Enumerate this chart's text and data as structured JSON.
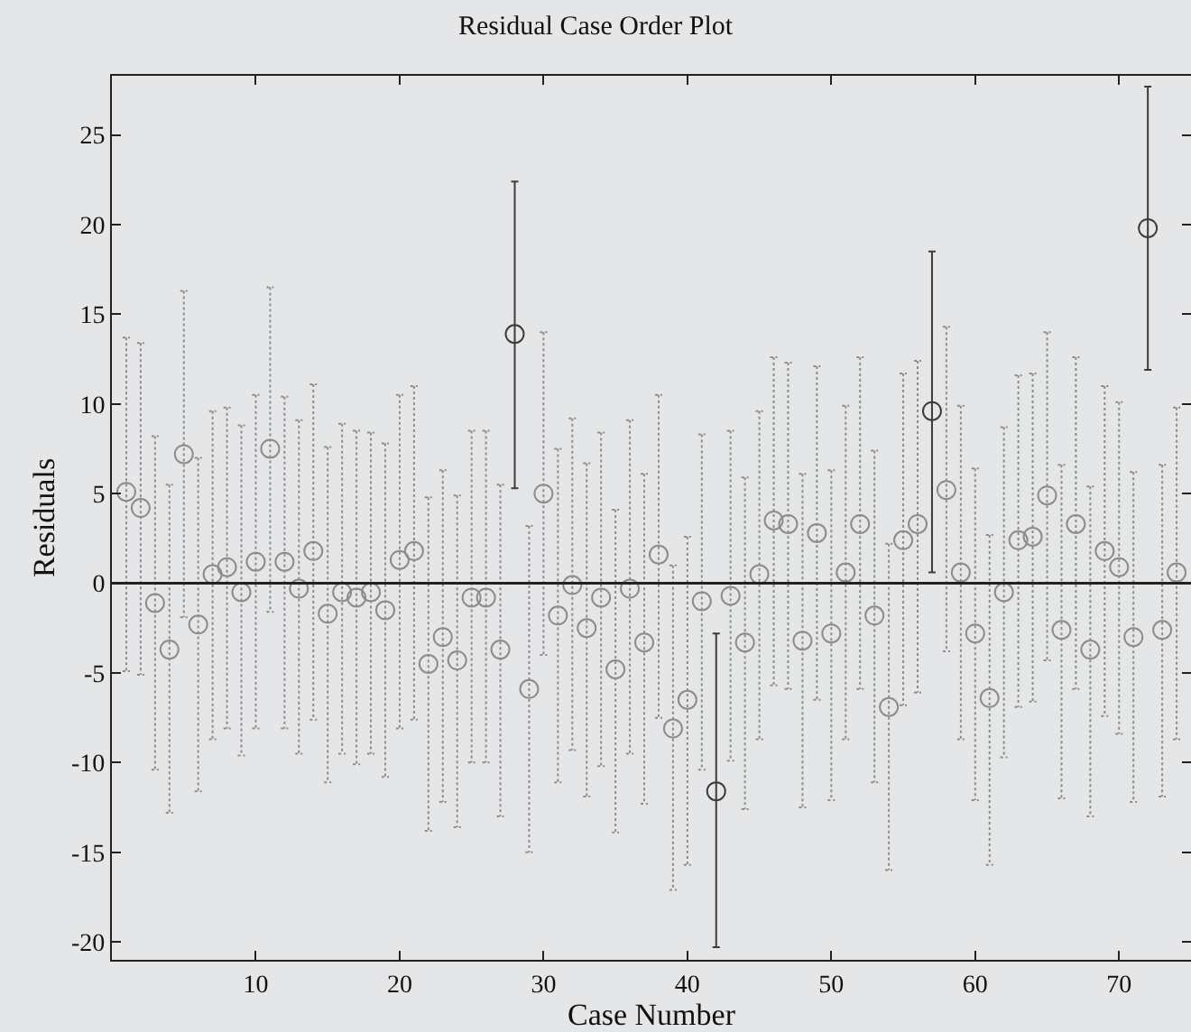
{
  "chart_data": {
    "type": "scatter",
    "title": "Residual Case Order Plot",
    "xlabel": "Case Number",
    "ylabel": "Residuals",
    "x": [
      1,
      2,
      3,
      4,
      5,
      6,
      7,
      8,
      9,
      10,
      11,
      12,
      13,
      14,
      15,
      16,
      17,
      18,
      19,
      20,
      21,
      22,
      23,
      24,
      25,
      26,
      27,
      28,
      29,
      30,
      31,
      32,
      33,
      34,
      35,
      36,
      37,
      38,
      39,
      40,
      41,
      42,
      43,
      44,
      45,
      46,
      47,
      48,
      49,
      50,
      51,
      52,
      53,
      54,
      55,
      56,
      57,
      58,
      59,
      60,
      61,
      62,
      63,
      64,
      65,
      66,
      67,
      68,
      69,
      70,
      71,
      72,
      73,
      74
    ],
    "series": [
      {
        "color": "#8c8c8c",
        "line_style": "dotted",
        "values": [
          5.1,
          4.2,
          -1.1,
          -3.7,
          7.2,
          -2.3,
          0.5,
          0.9,
          -0.5,
          1.2,
          7.5,
          1.2,
          -0.3,
          1.8,
          -1.7,
          -0.5,
          -0.8,
          -0.5,
          -1.5,
          1.3,
          1.8,
          -4.5,
          -3.0,
          -4.3,
          -0.8,
          -0.8,
          -3.7,
          null,
          -5.9,
          5.0,
          -1.8,
          -0.1,
          -2.5,
          -0.8,
          -4.8,
          -0.3,
          -3.3,
          1.6,
          -8.1,
          -6.5,
          -1.0,
          null,
          -0.7,
          -3.3,
          0.5,
          3.5,
          3.3,
          -3.2,
          2.8,
          -2.8,
          0.6,
          3.3,
          -1.8,
          -6.9,
          2.4,
          3.3,
          null,
          5.2,
          0.6,
          -2.8,
          -6.4,
          -0.5,
          2.4,
          2.6,
          4.9,
          -2.6,
          3.3,
          -3.7,
          1.8,
          0.9,
          -3.0,
          null,
          -2.6,
          0.6
        ],
        "errors": [
          [
            -4.9,
            13.7
          ],
          [
            -5.1,
            13.4
          ],
          [
            -10.4,
            8.2
          ],
          [
            -12.8,
            5.5
          ],
          [
            -1.9,
            16.3
          ],
          [
            -11.6,
            7.0
          ],
          [
            -8.7,
            9.6
          ],
          [
            -8.1,
            9.8
          ],
          [
            -9.6,
            8.8
          ],
          [
            -8.1,
            10.5
          ],
          [
            -1.6,
            16.5
          ],
          [
            -8.1,
            10.4
          ],
          [
            -9.5,
            9.1
          ],
          [
            -7.6,
            11.1
          ],
          [
            -11.1,
            7.6
          ],
          [
            -9.5,
            8.9
          ],
          [
            -10.1,
            8.5
          ],
          [
            -9.5,
            8.4
          ],
          [
            -10.8,
            7.8
          ],
          [
            -8.1,
            10.5
          ],
          [
            -7.6,
            11.0
          ],
          [
            -13.8,
            4.8
          ],
          [
            -12.2,
            6.3
          ],
          [
            -13.6,
            4.9
          ],
          [
            -10.0,
            8.5
          ],
          [
            -10.0,
            8.5
          ],
          [
            -13.0,
            5.5
          ],
          null,
          [
            -15.0,
            3.2
          ],
          [
            -4.0,
            14.0
          ],
          [
            -11.1,
            7.5
          ],
          [
            -9.3,
            9.2
          ],
          [
            -11.9,
            6.7
          ],
          [
            -10.2,
            8.4
          ],
          [
            -13.9,
            4.1
          ],
          [
            -9.5,
            9.1
          ],
          [
            -12.3,
            6.1
          ],
          [
            -7.5,
            10.5
          ],
          [
            -17.1,
            1.0
          ],
          [
            -15.7,
            2.6
          ],
          [
            -10.4,
            8.3
          ],
          null,
          [
            -9.9,
            8.5
          ],
          [
            -12.6,
            5.9
          ],
          [
            -8.7,
            9.6
          ],
          [
            -5.7,
            12.6
          ],
          [
            -5.9,
            12.3
          ],
          [
            -12.5,
            6.1
          ],
          [
            -6.5,
            12.1
          ],
          [
            -12.1,
            6.3
          ],
          [
            -8.7,
            9.9
          ],
          [
            -5.9,
            12.6
          ],
          [
            -11.1,
            7.4
          ],
          [
            -16.0,
            2.2
          ],
          [
            -6.8,
            11.7
          ],
          [
            -6.1,
            12.4
          ],
          null,
          [
            -3.8,
            14.3
          ],
          [
            -8.7,
            9.9
          ],
          [
            -12.1,
            6.4
          ],
          [
            -15.7,
            2.7
          ],
          [
            -9.7,
            8.7
          ],
          [
            -6.9,
            11.6
          ],
          [
            -6.6,
            11.7
          ],
          [
            -4.3,
            14.0
          ],
          [
            -12.0,
            6.6
          ],
          [
            -5.9,
            12.6
          ],
          [
            -13.0,
            5.4
          ],
          [
            -7.4,
            11.0
          ],
          [
            -8.4,
            10.1
          ],
          [
            -12.2,
            6.2
          ],
          null,
          [
            -11.9,
            6.6
          ],
          [
            -8.7,
            9.8
          ]
        ]
      },
      {
        "color": "#3c3c3c",
        "line_style": "solid",
        "values": [
          null,
          null,
          null,
          null,
          null,
          null,
          null,
          null,
          null,
          null,
          null,
          null,
          null,
          null,
          null,
          null,
          null,
          null,
          null,
          null,
          null,
          null,
          null,
          null,
          null,
          null,
          null,
          13.9,
          null,
          null,
          null,
          null,
          null,
          null,
          null,
          null,
          null,
          null,
          null,
          null,
          null,
          -11.6,
          null,
          null,
          null,
          null,
          null,
          null,
          null,
          null,
          null,
          null,
          null,
          null,
          null,
          null,
          9.6,
          null,
          null,
          null,
          null,
          null,
          null,
          null,
          null,
          null,
          null,
          null,
          null,
          null,
          null,
          19.8,
          null,
          null
        ],
        "errors": [
          null,
          null,
          null,
          null,
          null,
          null,
          null,
          null,
          null,
          null,
          null,
          null,
          null,
          null,
          null,
          null,
          null,
          null,
          null,
          null,
          null,
          null,
          null,
          null,
          null,
          null,
          null,
          [
            5.3,
            22.4
          ],
          null,
          null,
          null,
          null,
          null,
          null,
          null,
          null,
          null,
          null,
          null,
          null,
          null,
          [
            -20.3,
            -2.8
          ],
          null,
          null,
          null,
          null,
          null,
          null,
          null,
          null,
          null,
          null,
          null,
          null,
          null,
          null,
          [
            0.6,
            18.5
          ],
          null,
          null,
          null,
          null,
          null,
          null,
          null,
          null,
          null,
          null,
          null,
          null,
          null,
          null,
          [
            11.9,
            27.7
          ],
          null,
          null
        ]
      }
    ],
    "xlim": [
      0,
      75
    ],
    "xticks": [
      10,
      20,
      30,
      40,
      50,
      60,
      70
    ],
    "ylim": [
      -21,
      28.3
    ],
    "yticks": [
      -20,
      -15,
      -10,
      -5,
      0,
      5,
      10,
      15,
      20,
      25
    ],
    "ref_lines": [
      {
        "axis": "y",
        "value": 0,
        "color": "#222222"
      }
    ],
    "marker": "circle",
    "grid": false
  }
}
